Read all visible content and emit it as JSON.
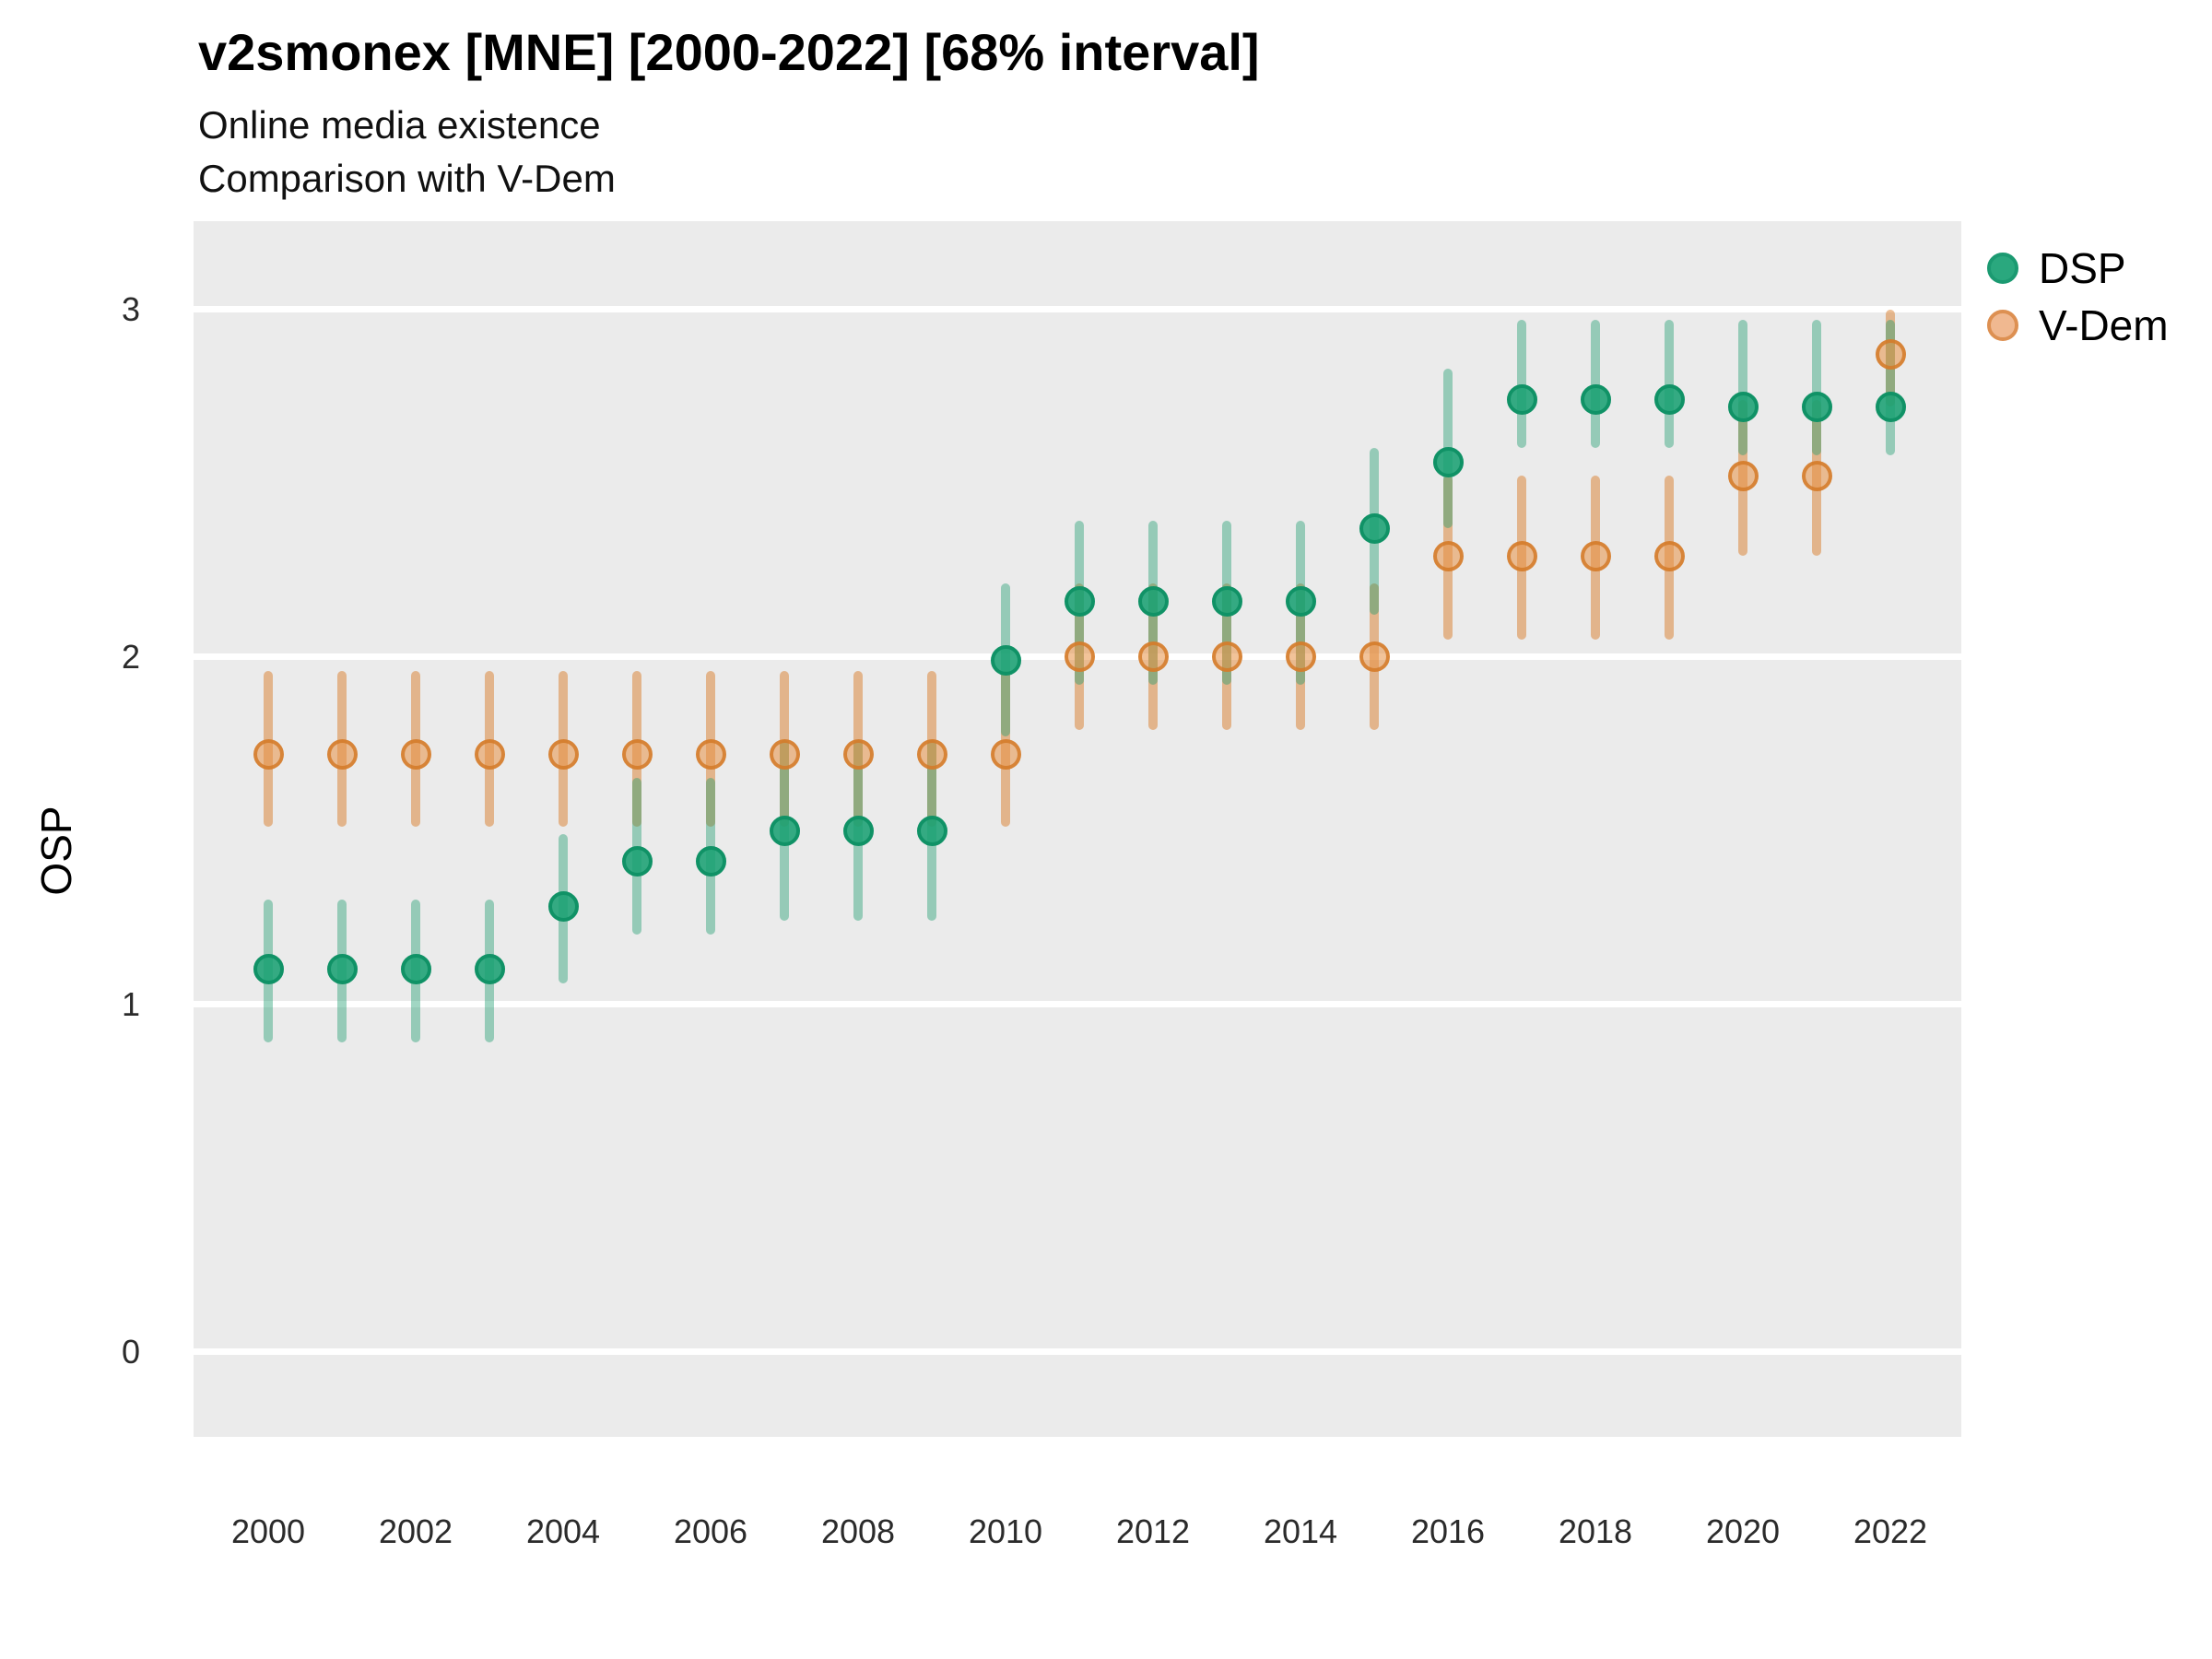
{
  "header": {
    "title": "v2smonex [MNE] [2000-2022] [68% interval]",
    "subtitle1": "Online media existence",
    "subtitle2": "Comparison with V-Dem"
  },
  "colors": {
    "panel_bg": "#ebebeb",
    "gridline": "#ffffff",
    "dsp_point_fill": "rgba(26,160,115,0.88)",
    "dsp_point_stroke": "rgba(16,146,102,1)",
    "dsp_bar": "rgba(31,158,111,0.42)",
    "vdem_point_fill": "rgba(231,146,69,0.55)",
    "vdem_point_stroke": "rgba(212,122,41,0.85)",
    "vdem_bar": "rgba(217,125,43,0.5)",
    "legend_dsp_fill": "#2aa87e",
    "legend_dsp_stroke": "#1b9a71",
    "legend_vdem_fill": "#f0b890",
    "legend_vdem_stroke": "#dd9052"
  },
  "chart_data": {
    "type": "scatter",
    "title": "v2smonex [MNE] [2000-2022] [68% interval]",
    "subtitle": [
      "Online media existence",
      "Comparison with V-Dem"
    ],
    "ylabel": "OSP",
    "xlabel": "",
    "grid": "horizontal-only",
    "legend_position": "right-top",
    "interval": "68%",
    "ylim": [
      -0.25,
      3.25
    ],
    "xlim": [
      1999,
      2023
    ],
    "yticks": [
      0,
      1,
      2,
      3
    ],
    "xticks": [
      2000,
      2002,
      2004,
      2006,
      2008,
      2010,
      2012,
      2014,
      2016,
      2018,
      2020,
      2022
    ],
    "x": [
      2000,
      2001,
      2002,
      2003,
      2004,
      2005,
      2006,
      2007,
      2008,
      2009,
      2010,
      2011,
      2012,
      2013,
      2014,
      2015,
      2016,
      2017,
      2018,
      2019,
      2020,
      2021,
      2022
    ],
    "series": [
      {
        "name": "DSP",
        "values": [
          1.1,
          1.1,
          1.1,
          1.1,
          1.28,
          1.41,
          1.41,
          1.5,
          1.5,
          1.5,
          1.99,
          2.16,
          2.16,
          2.16,
          2.16,
          2.37,
          2.56,
          2.74,
          2.74,
          2.74,
          2.72,
          2.72,
          2.72
        ],
        "lower": [
          0.89,
          0.89,
          0.89,
          0.89,
          1.06,
          1.2,
          1.2,
          1.24,
          1.24,
          1.24,
          1.77,
          1.92,
          1.92,
          1.92,
          1.92,
          2.12,
          2.37,
          2.6,
          2.6,
          2.6,
          2.58,
          2.58,
          2.58
        ],
        "upper": [
          1.3,
          1.3,
          1.3,
          1.3,
          1.49,
          1.65,
          1.65,
          1.76,
          1.76,
          1.76,
          2.21,
          2.39,
          2.39,
          2.39,
          2.39,
          2.6,
          2.83,
          2.97,
          2.97,
          2.97,
          2.97,
          2.97,
          2.97
        ]
      },
      {
        "name": "V-Dem",
        "values": [
          1.72,
          1.72,
          1.72,
          1.72,
          1.72,
          1.72,
          1.72,
          1.72,
          1.72,
          1.72,
          1.72,
          2.0,
          2.0,
          2.0,
          2.0,
          2.0,
          2.29,
          2.29,
          2.29,
          2.29,
          2.52,
          2.52,
          2.87
        ],
        "lower": [
          1.51,
          1.51,
          1.51,
          1.51,
          1.51,
          1.51,
          1.51,
          1.51,
          1.51,
          1.51,
          1.51,
          1.79,
          1.79,
          1.79,
          1.79,
          1.79,
          2.05,
          2.05,
          2.05,
          2.05,
          2.29,
          2.29,
          2.72
        ],
        "upper": [
          1.96,
          1.96,
          1.96,
          1.96,
          1.96,
          1.96,
          1.96,
          1.96,
          1.96,
          1.96,
          1.96,
          2.21,
          2.21,
          2.21,
          2.21,
          2.21,
          2.52,
          2.52,
          2.52,
          2.52,
          2.74,
          2.74,
          3.0
        ]
      }
    ]
  }
}
